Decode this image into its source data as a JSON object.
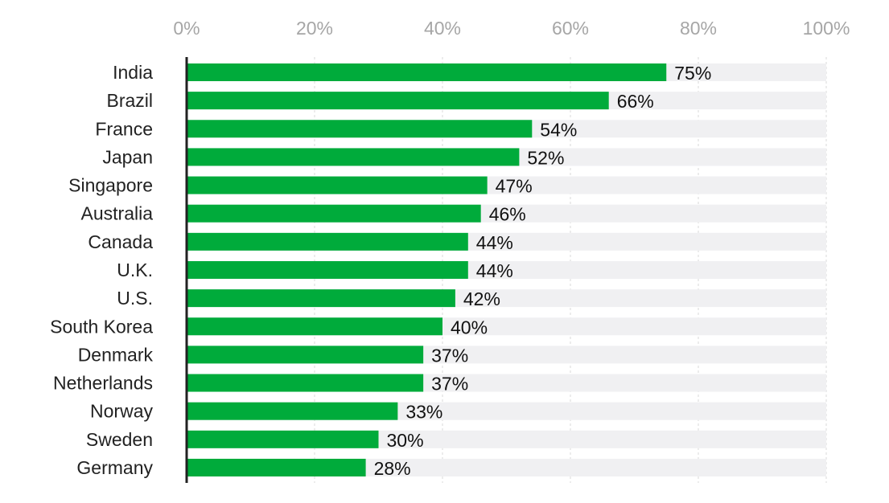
{
  "chart_data": {
    "type": "bar",
    "orientation": "horizontal",
    "title": "",
    "xlabel": "",
    "ylabel": "",
    "xlim": [
      0,
      100
    ],
    "x_ticks": [
      "0%",
      "20%",
      "40%",
      "60%",
      "80%",
      "100%"
    ],
    "x_tick_values": [
      0,
      20,
      40,
      60,
      80,
      100
    ],
    "grid": true,
    "legend": "none",
    "categories": [
      "India",
      "Brazil",
      "France",
      "Japan",
      "Singapore",
      "Australia",
      "Canada",
      "U.K.",
      "U.S.",
      "South Korea",
      "Denmark",
      "Netherlands",
      "Norway",
      "Sweden",
      "Germany"
    ],
    "values": [
      75,
      66,
      54,
      52,
      47,
      46,
      44,
      44,
      42,
      40,
      37,
      37,
      33,
      30,
      28
    ],
    "value_labels": [
      "75%",
      "66%",
      "54%",
      "52%",
      "47%",
      "46%",
      "44%",
      "44%",
      "42%",
      "40%",
      "37%",
      "37%",
      "33%",
      "30%",
      "28%"
    ],
    "colors": {
      "bar": "#00ab3b",
      "track": "#f0f0f2",
      "axis": "#222222",
      "tick_text": "#a6a6a6",
      "grid": "#d9d9d9"
    }
  }
}
